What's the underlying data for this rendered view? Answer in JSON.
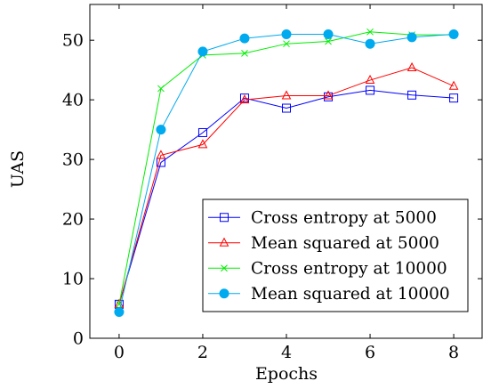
{
  "chart_data": {
    "type": "line",
    "title": "",
    "xlabel": "Epochs",
    "ylabel": "UAS",
    "xlim": [
      -0.7,
      8.7
    ],
    "ylim": [
      0,
      56
    ],
    "xticks": [
      0,
      2,
      4,
      6,
      8
    ],
    "yticks": [
      0,
      10,
      20,
      30,
      40,
      50
    ],
    "grid": false,
    "legend": "bottom-right",
    "x": [
      0,
      1,
      2,
      3,
      4,
      5,
      6,
      7,
      8
    ],
    "series": [
      {
        "name": "Cross entropy at 5000",
        "values": [
          5.7,
          29.5,
          34.5,
          40.3,
          38.6,
          40.5,
          41.6,
          40.8,
          40.3
        ],
        "color": "#0000ff",
        "marker": "square"
      },
      {
        "name": "Mean squared at 5000",
        "values": [
          5.7,
          30.7,
          32.5,
          40.0,
          40.7,
          40.7,
          43.3,
          45.4,
          42.3
        ],
        "color": "#ff0000",
        "marker": "triangle"
      },
      {
        "name": "Cross entropy at 10000",
        "values": [
          5.7,
          41.9,
          47.5,
          47.8,
          49.4,
          49.8,
          51.4,
          50.9,
          50.9
        ],
        "color": "#00ee00",
        "marker": "x"
      },
      {
        "name": "Mean squared at 10000",
        "values": [
          4.4,
          35.0,
          48.1,
          50.3,
          51.0,
          51.0,
          49.4,
          50.5,
          51.0
        ],
        "color": "#00aaee",
        "marker": "circle"
      }
    ]
  }
}
